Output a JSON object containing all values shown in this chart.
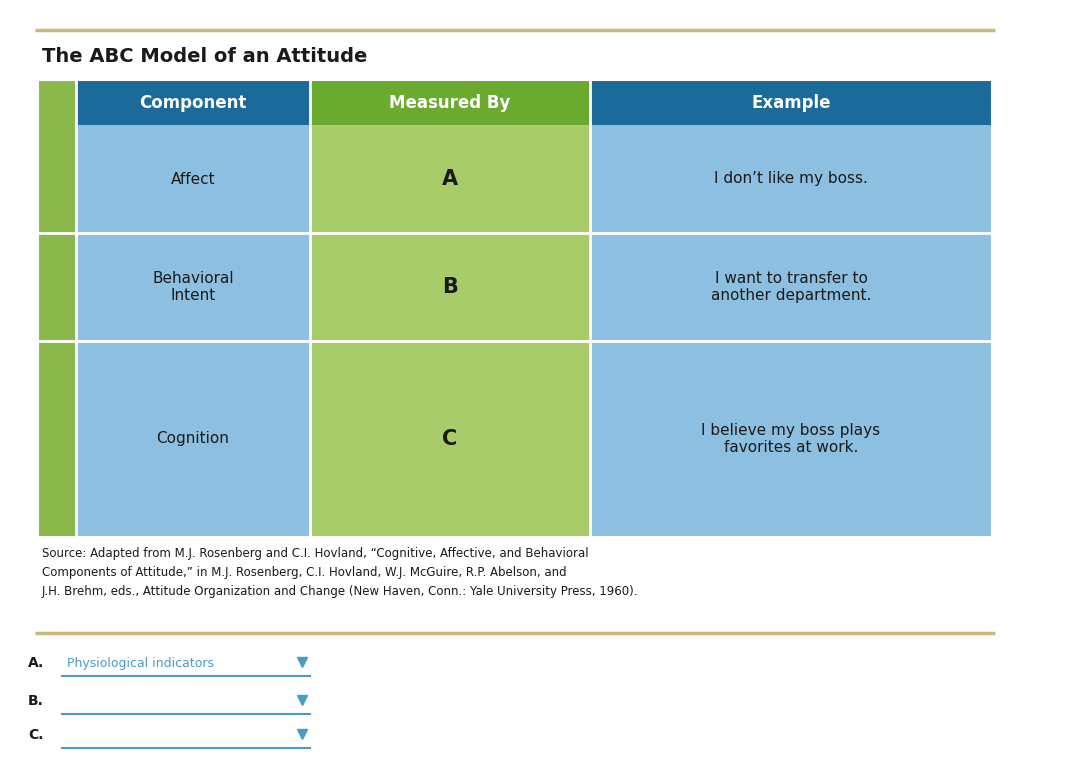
{
  "title": "The ABC Model of an Attitude",
  "top_rule_color": "#c8b87a",
  "bg_color": "#ffffff",
  "header_labels": [
    "Component",
    "Measured By",
    "Example"
  ],
  "header_bg_colors": [
    "#1a6b99",
    "#6aaa2e",
    "#1a6b99"
  ],
  "header_text_color": "#ffffff",
  "col_green_strip": "#8ab84a",
  "col_blue": "#8dc0e0",
  "col_green": "#a8cc6a",
  "rows": [
    {
      "component": "Affect",
      "measured_by": "A",
      "example": "I don’t like my boss."
    },
    {
      "component": "Behavioral\nIntent",
      "measured_by": "B",
      "example": "I want to transfer to\nanother department."
    },
    {
      "component": "Cognition",
      "measured_by": "C",
      "example": "I believe my boss plays\nfavorites at work."
    }
  ],
  "source_text": "Source: Adapted from M.J. Rosenberg and C.I. Hovland, “Cognitive, Affective, and Behavioral\nComponents of Attitude,” in M.J. Rosenberg, C.I. Hovland, W.J. McGuire, R.P. Abelson, and\nJ.H. Brehm, eds., Attitude Organization and Change (New Haven, Conn.: Yale University Press, 1960).",
  "dropdown_labels": [
    "A.",
    "B.",
    "C."
  ],
  "dropdown_a_text": "Physiological indicators",
  "dropdown_text_color": "#4a9cc7",
  "dropdown_line_color": "#4a9cc7",
  "dropdown_arrow_color": "#4a9cc7",
  "separator_color": "#c8b87a",
  "row_separator_color": "#ffffff",
  "col_separator_color": "#ffffff"
}
